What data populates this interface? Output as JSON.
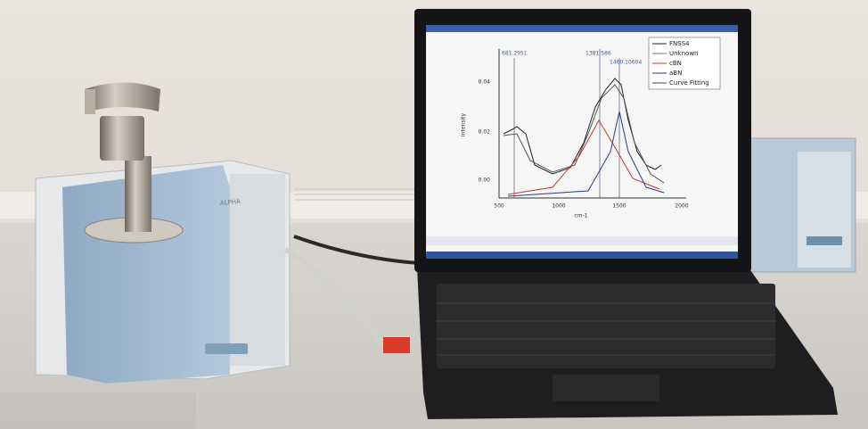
{
  "screen": {
    "legend": [
      "FNSS4",
      "Unknown",
      "cBN",
      "aBN",
      "Curve Fitting"
    ],
    "x_ticks": [
      "500",
      "1000",
      "1500",
      "2000"
    ],
    "y_ticks": [
      "0.00",
      "0.02",
      "0.04"
    ],
    "x_label": "cm-1",
    "y_label": "Intensity",
    "peak_labels": [
      "681.2951",
      "1381.586",
      "1460.10604"
    ]
  },
  "device": {
    "label": "ALPHA"
  }
}
